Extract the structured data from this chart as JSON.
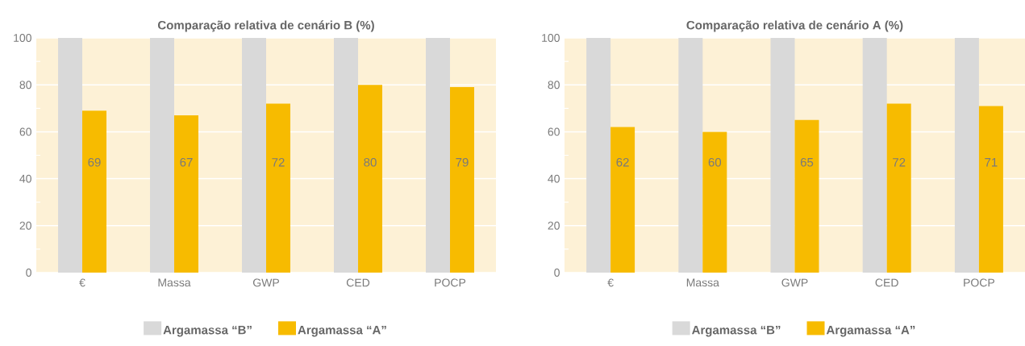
{
  "chart_data": [
    {
      "type": "bar",
      "title": "Comparação relativa de cenário B (%)",
      "categories": [
        "€",
        "Massa",
        "GWP",
        "CED",
        "POCP"
      ],
      "series": [
        {
          "name": "Argamassa “B”",
          "color": "#d9d9d9",
          "values": [
            100,
            100,
            100,
            100,
            100
          ]
        },
        {
          "name": "Argamassa “A”",
          "color": "#f7bb00",
          "values": [
            69,
            67,
            72,
            80,
            79
          ],
          "value_labels": [
            "69",
            "67",
            "72",
            "80",
            "79"
          ]
        }
      ],
      "ylim": [
        0,
        100
      ],
      "yticks": [
        0,
        {
          "value": 10,
          "label": null
        },
        20,
        {
          "value": 30,
          "label": null
        },
        40,
        {
          "value": 50,
          "label": null
        },
        60,
        {
          "value": 70,
          "label": null
        },
        80,
        {
          "value": 90,
          "label": null
        },
        100
      ],
      "grid": "y",
      "legend": "bottom"
    },
    {
      "type": "bar",
      "title": "Comparação relativa de cenário A (%)",
      "categories": [
        "€",
        "Massa",
        "GWP",
        "CED",
        "POCP"
      ],
      "series": [
        {
          "name": "Argamassa “B”",
          "color": "#d9d9d9",
          "values": [
            100,
            100,
            100,
            100,
            100
          ]
        },
        {
          "name": "Argamassa “A”",
          "color": "#f7bb00",
          "values": [
            62,
            60,
            65,
            72,
            71
          ],
          "value_labels": [
            "62",
            "60",
            "65",
            "72",
            "71"
          ]
        }
      ],
      "ylim": [
        0,
        100
      ],
      "yticks": [
        0,
        {
          "value": 10,
          "label": null
        },
        20,
        {
          "value": 30,
          "label": null
        },
        40,
        {
          "value": 50,
          "label": null
        },
        60,
        {
          "value": 70,
          "label": null
        },
        80,
        {
          "value": 90,
          "label": null
        },
        100
      ],
      "grid": "y",
      "legend": "bottom"
    }
  ]
}
